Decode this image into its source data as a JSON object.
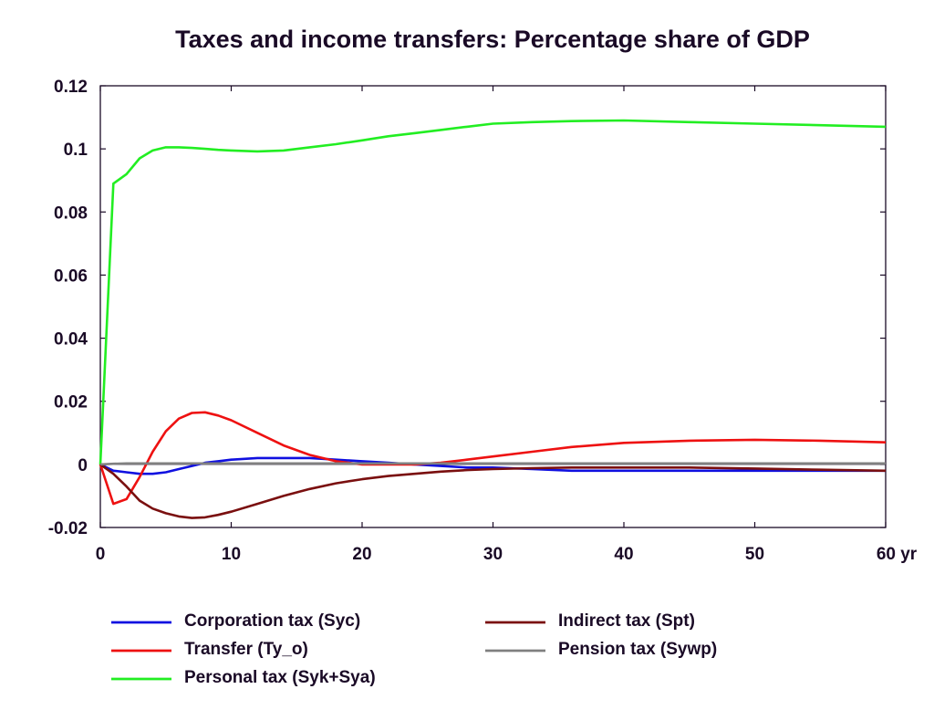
{
  "chart_data": {
    "type": "line",
    "title": "Taxes and income transfers: Percentage share of GDP",
    "xlabel": "",
    "ylabel": "",
    "xlim": [
      0,
      60
    ],
    "ylim": [
      -0.02,
      0.12
    ],
    "xticks": [
      0,
      10,
      20,
      30,
      40,
      50,
      60
    ],
    "xtick_labels": [
      "0",
      "10",
      "20",
      "30",
      "40",
      "50",
      "60 yr"
    ],
    "yticks": [
      -0.02,
      0,
      0.02,
      0.04,
      0.06,
      0.08,
      0.1,
      0.12
    ],
    "ytick_labels": [
      "-0.02",
      "0",
      "0.02",
      "0.04",
      "0.06",
      "0.08",
      "0.1",
      "0.12"
    ],
    "grid": false,
    "legend_position": "bottom",
    "x": [
      0,
      1,
      2,
      3,
      4,
      5,
      6,
      7,
      8,
      9,
      10,
      12,
      14,
      16,
      18,
      20,
      22,
      24,
      26,
      28,
      30,
      33,
      36,
      40,
      45,
      50,
      55,
      60
    ],
    "series": [
      {
        "name": "Corporation tax (Syc)",
        "color": "#1010e0",
        "values": [
          0,
          -0.002,
          -0.0025,
          -0.003,
          -0.003,
          -0.0025,
          -0.0015,
          -0.0005,
          0.0005,
          0.001,
          0.0015,
          0.002,
          0.002,
          0.002,
          0.0015,
          0.001,
          0.0005,
          0.0,
          -0.0005,
          -0.001,
          -0.001,
          -0.0015,
          -0.002,
          -0.002,
          -0.002,
          -0.002,
          -0.002,
          -0.002
        ]
      },
      {
        "name": "Transfer (Ty_o)",
        "color": "#ee1111",
        "values": [
          0,
          -0.0125,
          -0.011,
          -0.004,
          0.004,
          0.0105,
          0.0145,
          0.0163,
          0.0165,
          0.0155,
          0.014,
          0.01,
          0.006,
          0.003,
          0.001,
          0.0,
          0.0,
          0.0,
          0.0005,
          0.0015,
          0.0025,
          0.004,
          0.0055,
          0.0068,
          0.0075,
          0.0078,
          0.0075,
          0.007
        ]
      },
      {
        "name": "Personal tax (Syk+Sya)",
        "color": "#22ee22",
        "values": [
          0,
          0.089,
          0.092,
          0.097,
          0.0995,
          0.1005,
          0.1005,
          0.1003,
          0.1,
          0.0997,
          0.0995,
          0.0992,
          0.0995,
          0.1005,
          0.1015,
          0.1027,
          0.104,
          0.105,
          0.106,
          0.107,
          0.108,
          0.1085,
          0.1088,
          0.109,
          0.1085,
          0.108,
          0.1075,
          0.107
        ]
      },
      {
        "name": "Indirect tax (Spt)",
        "color": "#7a0f0f",
        "values": [
          0,
          -0.003,
          -0.007,
          -0.0115,
          -0.014,
          -0.0155,
          -0.0165,
          -0.017,
          -0.0168,
          -0.016,
          -0.015,
          -0.0125,
          -0.01,
          -0.0078,
          -0.006,
          -0.0047,
          -0.0037,
          -0.003,
          -0.0023,
          -0.0018,
          -0.0015,
          -0.0012,
          -0.001,
          -0.001,
          -0.001,
          -0.0013,
          -0.0017,
          -0.002
        ]
      },
      {
        "name": "Pension tax (Sywp)",
        "color": "#808080",
        "values": [
          0,
          0.0002,
          0.0003,
          0.0003,
          0.0003,
          0.0003,
          0.0003,
          0.0003,
          0.0003,
          0.0003,
          0.0003,
          0.0003,
          0.0003,
          0.0003,
          0.0003,
          0.0003,
          0.0003,
          0.0003,
          0.0003,
          0.0003,
          0.0003,
          0.0003,
          0.0003,
          0.0003,
          0.0003,
          0.0003,
          0.0003,
          0.0003
        ]
      }
    ],
    "zero_line_color": "#1a0a26",
    "text_color": "#1a0a26"
  }
}
